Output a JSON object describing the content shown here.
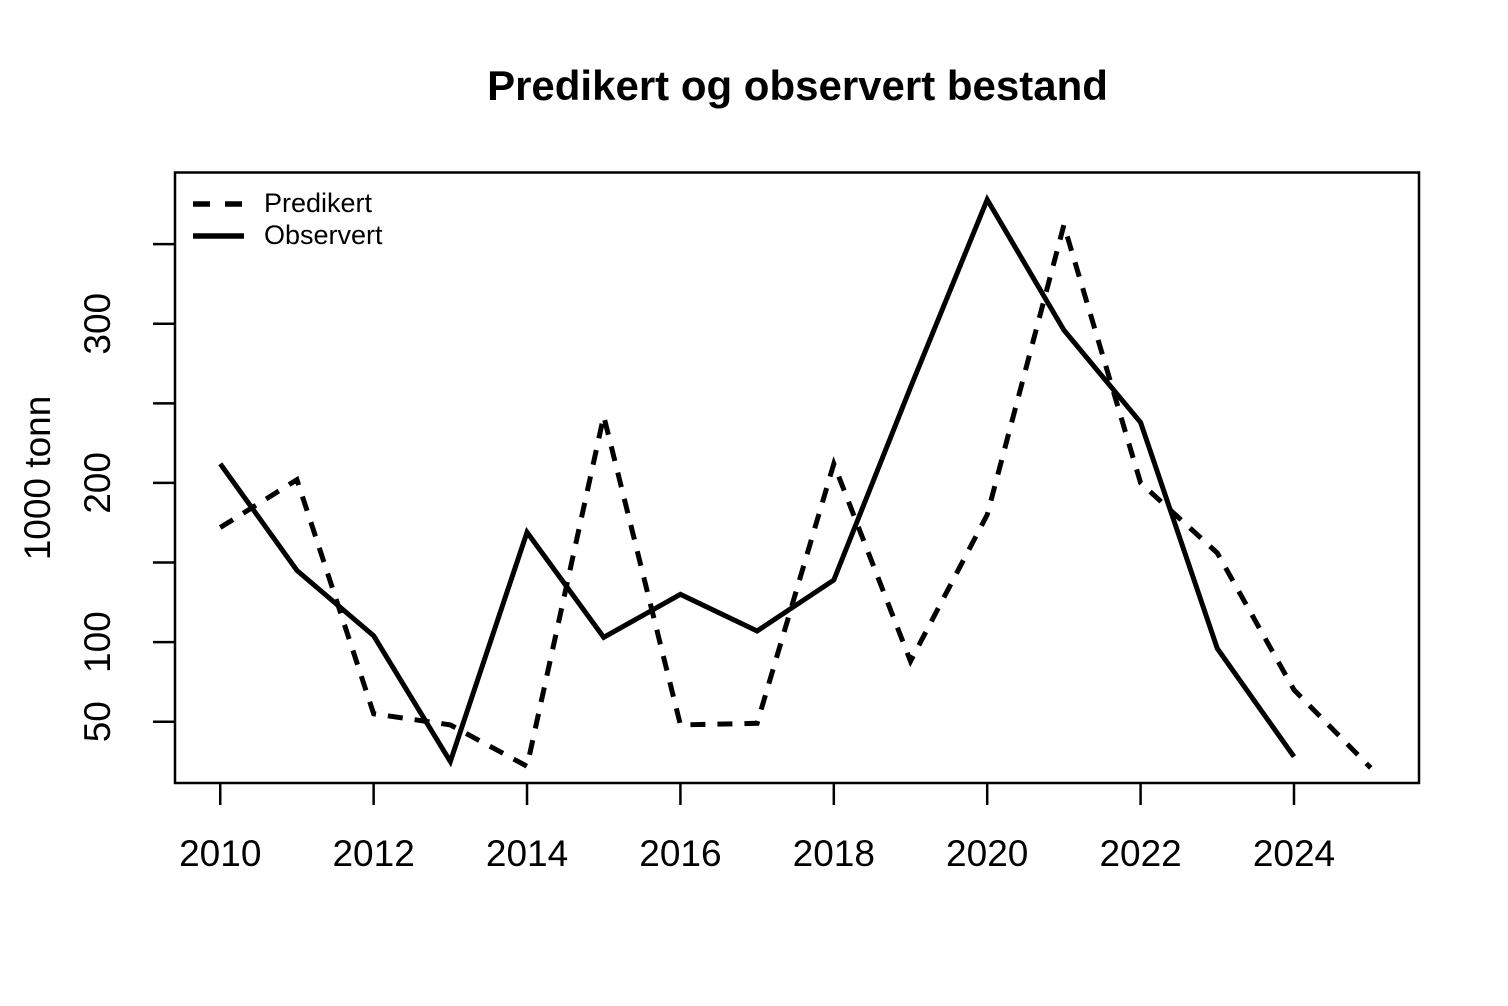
{
  "chart_data": {
    "type": "line",
    "title": "Predikert og observert bestand",
    "xlabel": "",
    "ylabel": "1000 tonn",
    "grid": false,
    "legend_position": "topleft",
    "colors": {
      "line": "#000000",
      "background": "#ffffff"
    },
    "xlim": [
      2009.41,
      2025.63
    ],
    "ylim": [
      11.5,
      395
    ],
    "x_ticks": [
      2010,
      2012,
      2014,
      2016,
      2018,
      2020,
      2022,
      2024
    ],
    "y_ticks": [
      50,
      100,
      150,
      200,
      250,
      300,
      350
    ],
    "y_tick_labels_shown": [
      50,
      100,
      200,
      300
    ],
    "series": [
      {
        "name": "Predikert",
        "style": "dashed",
        "x": [
          2010,
          2011,
          2012,
          2013,
          2014,
          2015,
          2016,
          2017,
          2018,
          2019,
          2020,
          2021,
          2022,
          2023,
          2024,
          2025
        ],
        "values": [
          172,
          202,
          55,
          48,
          22,
          242,
          48,
          49,
          212,
          88,
          180,
          362,
          200,
          156,
          70,
          21
        ]
      },
      {
        "name": "Observert",
        "style": "solid",
        "x": [
          2010,
          2011,
          2012,
          2013,
          2014,
          2015,
          2016,
          2017,
          2018,
          2019,
          2020,
          2021,
          2022,
          2023,
          2024
        ],
        "values": [
          212,
          145,
          104,
          25,
          169,
          103,
          130,
          107,
          139,
          260,
          378,
          296,
          238,
          96,
          28
        ]
      }
    ]
  }
}
